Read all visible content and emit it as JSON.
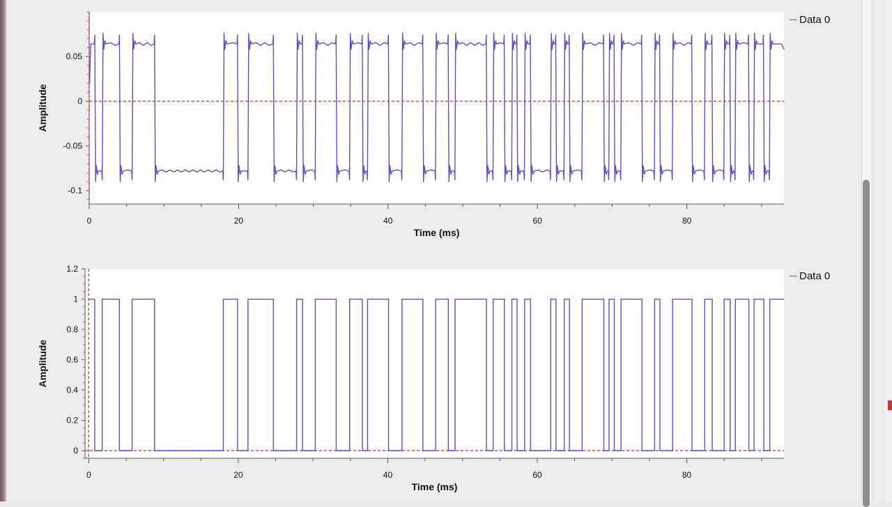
{
  "chart_data": [
    {
      "type": "line",
      "xlabel": "Time (ms)",
      "ylabel": "Amplitude",
      "xlim": [
        0,
        93
      ],
      "ylim": [
        -0.115,
        0.1
      ],
      "xticks": [
        "0",
        "20",
        "40",
        "60",
        "80"
      ],
      "yticks": [
        "0.05",
        "0",
        "-0.05",
        "-0.1"
      ],
      "grid": false,
      "legend_position": "right",
      "series": [
        {
          "name": "Data 0",
          "color": "#5a4fd0",
          "high": 0.064,
          "low": -0.078,
          "transitions_ms": [
            0.8,
            1.8,
            4.1,
            5.8,
            8.8,
            18.0,
            19.9,
            21.3,
            24.7,
            27.8,
            28.6,
            30.3,
            33.1,
            34.9,
            36.6,
            37.3,
            40.1,
            41.9,
            44.7,
            46.4,
            48.1,
            49.0,
            53.2,
            54.1,
            55.6,
            56.6,
            57.3,
            58.3,
            59.1,
            61.8,
            62.5,
            63.6,
            64.3,
            66.0,
            68.9,
            69.6,
            70.3,
            71.2,
            74.0,
            75.7,
            76.4,
            78.1,
            80.7,
            82.4,
            83.4,
            85.0,
            85.8,
            86.5,
            88.3,
            89.0,
            90.3,
            91.1
          ]
        }
      ],
      "reference_lines": {
        "x": 0,
        "y": 0,
        "color": "#dd4444",
        "style": "dashed"
      }
    },
    {
      "type": "line",
      "xlabel": "Time (ms)",
      "ylabel": "Amplitude",
      "xlim": [
        -0.5,
        93
      ],
      "ylim": [
        -0.05,
        1.2
      ],
      "xticks": [
        "0",
        "20",
        "40",
        "60",
        "80"
      ],
      "yticks": [
        "1.2",
        "1",
        "0.8",
        "0.6",
        "0.4",
        "0.2",
        "0"
      ],
      "grid": false,
      "legend_position": "right",
      "series": [
        {
          "name": "Data 0",
          "color": "#5a4fd0",
          "high": 1,
          "low": 0,
          "transitions_ms": [
            0.8,
            1.8,
            4.1,
            5.8,
            8.8,
            18.0,
            19.9,
            21.3,
            24.7,
            27.8,
            28.6,
            30.3,
            33.1,
            34.9,
            36.6,
            37.3,
            40.1,
            41.9,
            44.7,
            46.4,
            48.1,
            49.0,
            53.2,
            54.1,
            55.6,
            56.6,
            57.3,
            58.3,
            59.1,
            61.8,
            62.5,
            63.6,
            64.3,
            66.0,
            68.9,
            69.6,
            70.3,
            71.2,
            74.0,
            75.7,
            76.4,
            78.1,
            80.7,
            82.4,
            83.4,
            85.0,
            85.8,
            86.5,
            88.3,
            89.0,
            90.3,
            91.1
          ]
        }
      ],
      "reference_lines": {
        "x": 0,
        "y": 0,
        "color": "#dd4444",
        "style": "dashed"
      }
    }
  ]
}
